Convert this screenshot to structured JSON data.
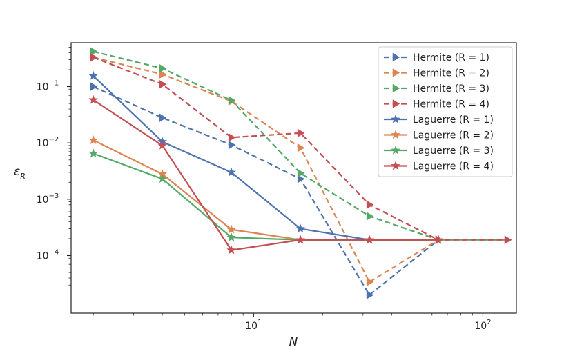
{
  "chart_data": {
    "type": "line",
    "xscale": "log",
    "yscale": "log",
    "xlabel": "N",
    "ylabel": "εR",
    "ylabel_main": "ε",
    "ylabel_sub": "R",
    "xlim": [
      1.6,
      140
    ],
    "ylim": [
      9.5e-06,
      0.6
    ],
    "xticks_major": [
      {
        "value": 10,
        "base": "10",
        "exp": "1"
      },
      {
        "value": 100,
        "base": "10",
        "exp": "2"
      }
    ],
    "yticks_major": [
      {
        "value": 0.0001,
        "base": "10",
        "exp": "−4"
      },
      {
        "value": 0.001,
        "base": "10",
        "exp": "−3"
      },
      {
        "value": 0.01,
        "base": "10",
        "exp": "−2"
      },
      {
        "value": 0.1,
        "base": "10",
        "exp": "−1"
      }
    ],
    "legend_position": "upper right",
    "series": [
      {
        "name": "Hermite (R = 1)",
        "color": "#4c72b0",
        "linestyle": "dashed",
        "marker": "triangle-right",
        "x": [
          2,
          4,
          8,
          16,
          32,
          64
        ],
        "y": [
          0.1,
          0.028,
          0.0092,
          0.0023,
          2e-05,
          0.00019
        ]
      },
      {
        "name": "Hermite (R = 2)",
        "color": "#dd8452",
        "linestyle": "dashed",
        "marker": "triangle-right",
        "x": [
          2,
          4,
          8,
          16,
          32,
          64
        ],
        "y": [
          0.33,
          0.165,
          0.055,
          0.0082,
          3.4e-05,
          0.00019
        ]
      },
      {
        "name": "Hermite (R = 3)",
        "color": "#55a868",
        "linestyle": "dashed",
        "marker": "triangle-right",
        "x": [
          2,
          4,
          8,
          16,
          32,
          64,
          128
        ],
        "y": [
          0.42,
          0.21,
          0.057,
          0.0029,
          0.0005,
          0.00019,
          0.00019
        ]
      },
      {
        "name": "Hermite (R = 4)",
        "color": "#c44e52",
        "linestyle": "dashed",
        "marker": "triangle-right",
        "x": [
          2,
          4,
          8,
          16,
          32,
          64,
          128
        ],
        "y": [
          0.33,
          0.11,
          0.0125,
          0.015,
          0.0008,
          0.00019,
          0.00019
        ]
      },
      {
        "name": "Laguerre (R = 1)",
        "color": "#4c72b0",
        "linestyle": "solid",
        "marker": "star",
        "x": [
          2,
          4,
          8,
          16,
          32,
          64
        ],
        "y": [
          0.155,
          0.0105,
          0.003,
          0.0003,
          0.00019,
          0.00019
        ]
      },
      {
        "name": "Laguerre (R = 2)",
        "color": "#dd8452",
        "linestyle": "solid",
        "marker": "star",
        "x": [
          2,
          4,
          8,
          16,
          32,
          64
        ],
        "y": [
          0.0112,
          0.0028,
          0.00029,
          0.00019,
          0.00019,
          0.00019
        ]
      },
      {
        "name": "Laguerre (R = 3)",
        "color": "#55a868",
        "linestyle": "solid",
        "marker": "star",
        "x": [
          2,
          4,
          8,
          16,
          32,
          64
        ],
        "y": [
          0.0065,
          0.0023,
          0.00021,
          0.00019,
          0.00019,
          0.00019
        ]
      },
      {
        "name": "Laguerre (R = 4)",
        "color": "#c44e52",
        "linestyle": "solid",
        "marker": "star",
        "x": [
          2,
          4,
          8,
          16,
          32,
          64
        ],
        "y": [
          0.058,
          0.009,
          0.000125,
          0.00019,
          0.00019,
          0.00019
        ]
      }
    ]
  }
}
